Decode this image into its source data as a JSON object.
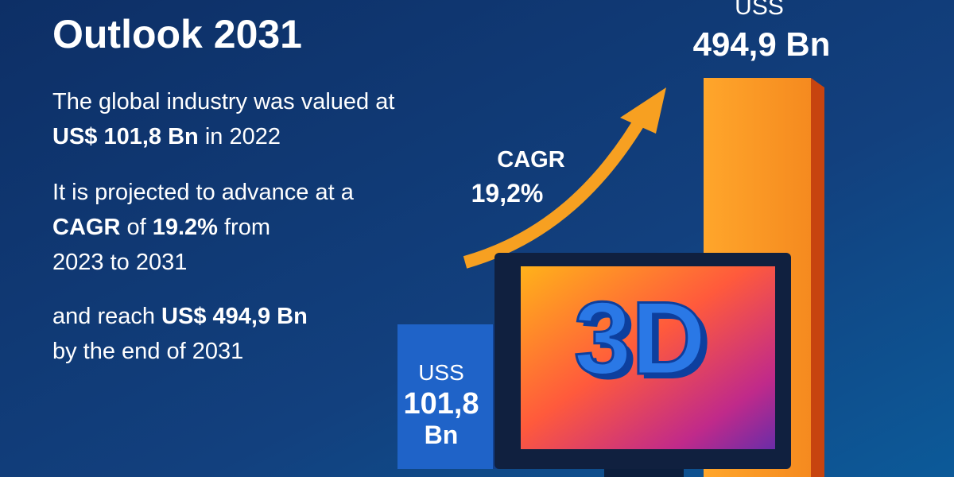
{
  "header": {
    "title": "Outlook 2031"
  },
  "paragraphs": [
    {
      "lines": [
        [
          "The global industry was valued at"
        ],
        [
          "US$ 101,8 Bn",
          " in 2022"
        ]
      ]
    },
    {
      "lines": [
        [
          "It is projected to advance at a"
        ],
        [
          "CAGR",
          " of ",
          "19.2%",
          " from"
        ],
        [
          "2023 to 2031"
        ]
      ]
    },
    {
      "lines": [
        [
          "and reach ",
          "US$ 494,9 Bn"
        ],
        [
          "by the end of 2031"
        ]
      ]
    }
  ],
  "graphic": {
    "cagr_label": "CAGR",
    "cagr_value": "19,2%",
    "start_bar": {
      "currency": "USS",
      "amount": "101,8",
      "unit": "Bn"
    },
    "end_bar": {
      "currency": "USS",
      "amount": "494,9 Bn"
    },
    "screen_text": "3D"
  }
}
